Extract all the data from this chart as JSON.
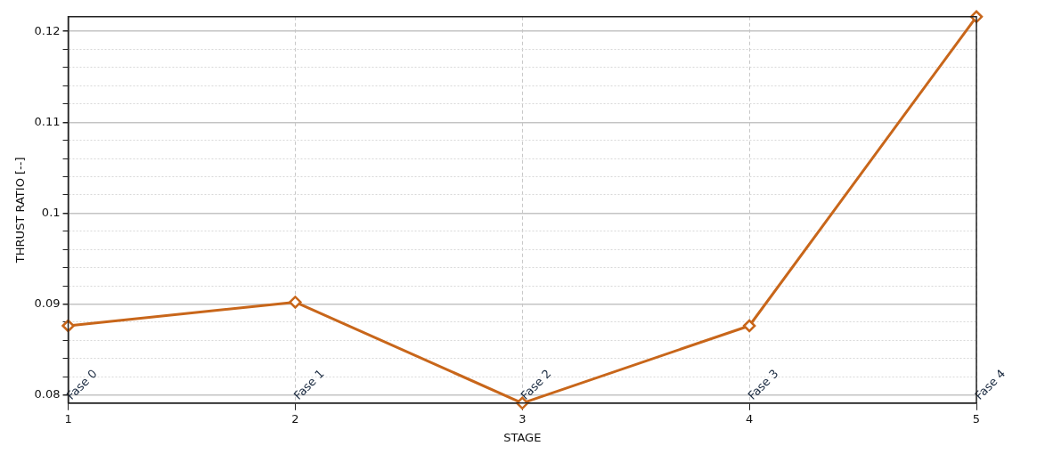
{
  "chart_data": {
    "type": "line",
    "xlabel": "STAGE",
    "ylabel": "THRUST RATIO [--]",
    "x": [
      1,
      2,
      3,
      4,
      5
    ],
    "series": [
      {
        "color": "#c8661a",
        "values": [
          0.0876,
          0.0902,
          0.0791,
          0.0876,
          0.1216
        ]
      }
    ],
    "xlim": [
      1,
      5
    ],
    "xticks": [
      1,
      2,
      3,
      4,
      5
    ],
    "ylim": [
      0.0791,
      0.1216
    ],
    "yticks": [
      0.08,
      {
        "value": 0.082,
        "label": null
      },
      {
        "value": 0.084,
        "label": null
      },
      {
        "value": 0.086,
        "label": null
      },
      {
        "value": 0.088,
        "label": null
      },
      0.09,
      {
        "value": 0.092,
        "label": null
      },
      {
        "value": 0.094,
        "label": null
      },
      {
        "value": 0.096,
        "label": null
      },
      {
        "value": 0.098,
        "label": null
      },
      0.1,
      {
        "value": 0.102,
        "label": null
      },
      {
        "value": 0.104,
        "label": null
      },
      {
        "value": 0.106,
        "label": null
      },
      {
        "value": 0.108,
        "label": null
      },
      0.11,
      {
        "value": 0.112,
        "label": null
      },
      {
        "value": 0.114,
        "label": null
      },
      {
        "value": 0.116,
        "label": null
      },
      {
        "value": 0.118,
        "label": null
      },
      0.12
    ],
    "grid": true,
    "marker": "diamond",
    "line_style": "solid",
    "legend": false,
    "annotations": [
      "Fase 0",
      "Fase 1",
      "Fase 2",
      "Fase 3",
      "Fase 4"
    ]
  }
}
